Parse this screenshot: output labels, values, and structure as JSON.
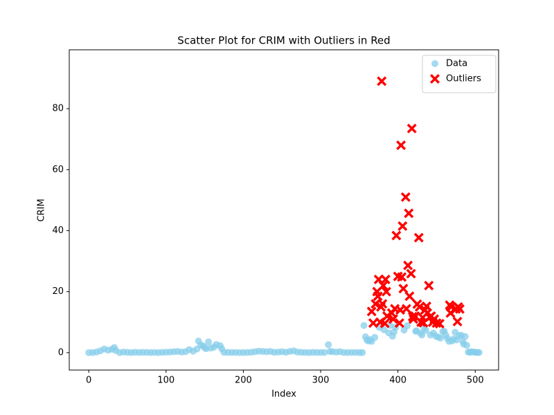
{
  "chart_data": {
    "type": "scatter",
    "title": "Scatter Plot for CRIM with Outliers in Red",
    "x_label": "Index",
    "y_label": "CRIM",
    "xlim": [
      -25.25,
      530.25
    ],
    "ylim": [
      -5.7,
      99.3
    ],
    "xticks": [
      0,
      100,
      200,
      300,
      400,
      500
    ],
    "yticks": [
      0,
      20,
      40,
      60,
      80
    ],
    "legend": "upper right",
    "series": [
      {
        "name": "Data",
        "color": "#87ceeb",
        "marker": "circle",
        "x": [
          0,
          5,
          10,
          15,
          20,
          25,
          30,
          33,
          35,
          40,
          45,
          50,
          55,
          60,
          65,
          70,
          75,
          80,
          85,
          90,
          95,
          100,
          105,
          110,
          115,
          120,
          125,
          130,
          135,
          140,
          142,
          145,
          148,
          150,
          152,
          155,
          158,
          162,
          165,
          170,
          172,
          175,
          180,
          185,
          190,
          195,
          200,
          205,
          210,
          215,
          220,
          225,
          230,
          235,
          240,
          245,
          250,
          255,
          260,
          265,
          270,
          275,
          280,
          285,
          290,
          295,
          300,
          305,
          310,
          312,
          315,
          320,
          325,
          330,
          335,
          340,
          345,
          350,
          354,
          356,
          358,
          360,
          362,
          364,
          366,
          370,
          376,
          382,
          388,
          390,
          393,
          395,
          397,
          408,
          412,
          423,
          424,
          429,
          431,
          434,
          436,
          442,
          446,
          449,
          452,
          455,
          458,
          460,
          462,
          464,
          466,
          470,
          472,
          474,
          476,
          479,
          482,
          484,
          485,
          487,
          489,
          491,
          493,
          495,
          497,
          499,
          501,
          503,
          505
        ],
        "values": [
          0.006,
          0.03,
          0.2,
          0.6,
          1.2,
          0.8,
          1.1,
          1.7,
          0.7,
          0.03,
          0.2,
          0.1,
          0.02,
          0.15,
          0.05,
          0.1,
          0.08,
          0.03,
          0.05,
          0.04,
          0.1,
          0.15,
          0.2,
          0.3,
          0.4,
          0.2,
          0.3,
          1,
          0.5,
          1.2,
          3.8,
          2.5,
          2.2,
          1.6,
          1.3,
          3.5,
          1.5,
          1.8,
          2.7,
          2.3,
          1.3,
          0.1,
          0.07,
          0.06,
          0.05,
          0.03,
          0.02,
          0.05,
          0.13,
          0.3,
          0.5,
          0.4,
          0.3,
          0.4,
          0.1,
          0.2,
          0.3,
          0.15,
          0.4,
          0.6,
          0.2,
          0.1,
          0.05,
          0.03,
          0.1,
          0.06,
          0.05,
          0.05,
          2.6,
          0.4,
          0.3,
          0.2,
          0.3,
          0.05,
          0.04,
          0.06,
          0.05,
          0.04,
          0.02,
          8.9,
          5.2,
          4.1,
          3.8,
          4.3,
          3.7,
          5,
          8.3,
          7.5,
          6.5,
          8.9,
          5.4,
          6.8,
          8.3,
          7.4,
          8.8,
          7,
          7.2,
          6.4,
          5.8,
          8,
          7.3,
          5.8,
          6.4,
          5.4,
          5.1,
          4.8,
          6.9,
          7,
          5.7,
          4.7,
          3.7,
          3.8,
          4.5,
          6.7,
          4.2,
          5.6,
          5.7,
          3.7,
          2.8,
          5.3,
          2.4,
          0.2,
          0.1,
          0.3,
          0.2,
          0.2,
          0.06,
          0.06,
          0.05
        ]
      },
      {
        "name": "Outliers",
        "color": "#ff0000",
        "marker": "x",
        "x": [
          366,
          368,
          371,
          373,
          374,
          375,
          377,
          378,
          379,
          380,
          381,
          383,
          384,
          385,
          386,
          392,
          394,
          396,
          398,
          400,
          402,
          403,
          404,
          405,
          406,
          407,
          410,
          411,
          413,
          414,
          415,
          417,
          418,
          419,
          420,
          422,
          425,
          427,
          428,
          430,
          432,
          433,
          435,
          437,
          438,
          440,
          441,
          443,
          445,
          447,
          450,
          454,
          467,
          468,
          469,
          475,
          477,
          478,
          480
        ],
        "values": [
          13.5,
          9.7,
          16,
          20,
          18.5,
          24,
          10,
          15,
          89,
          16,
          22,
          9.6,
          24,
          20,
          12,
          13,
          11,
          14.4,
          38.4,
          25,
          9.7,
          14,
          68,
          24.8,
          41.5,
          21,
          51,
          14.4,
          28.6,
          45.7,
          18.5,
          25.9,
          73.5,
          11.8,
          11,
          12,
          15.9,
          37.7,
          15,
          10,
          11.5,
          9.8,
          14,
          15.2,
          13,
          22,
          11.6,
          12,
          10,
          11,
          9.7,
          9.5,
          15.6,
          13,
          15,
          14.3,
          10.2,
          15,
          14.3
        ]
      }
    ]
  }
}
